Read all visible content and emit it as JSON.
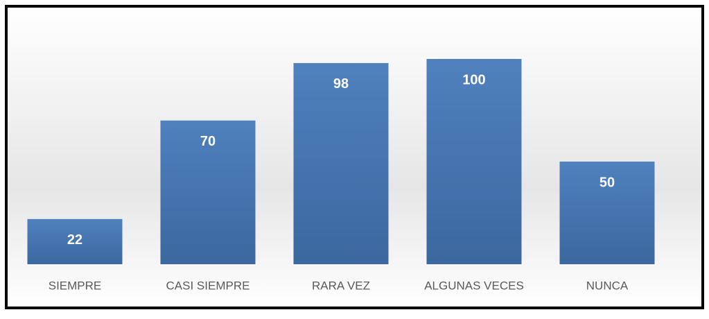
{
  "chart_data": {
    "type": "bar",
    "categories": [
      "SIEMPRE",
      "CASI SIEMPRE",
      "RARA VEZ",
      "ALGUNAS VECES",
      "NUNCA"
    ],
    "values": [
      22,
      70,
      98,
      100,
      50
    ],
    "color": "#4f81bd"
  }
}
